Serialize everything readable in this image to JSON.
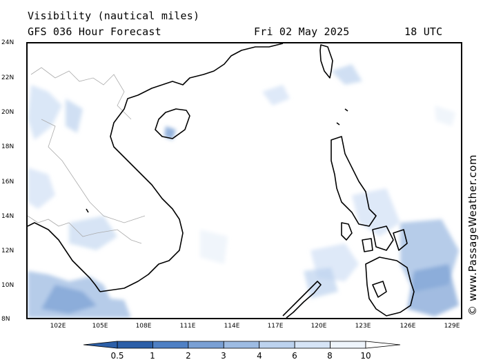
{
  "header": {
    "title": "Visibility (nautical miles)",
    "model": "GFS 036 Hour Forecast",
    "date": "Fri 02 May 2025",
    "time": "18 UTC"
  },
  "map": {
    "lat_labels": [
      "24N",
      "22N",
      "20N",
      "18N",
      "16N",
      "14N",
      "12N",
      "10N",
      "8N"
    ],
    "lon_labels": [
      "102E",
      "105E",
      "108E",
      "111E",
      "114E",
      "117E",
      "120E",
      "123E",
      "126E",
      "129E"
    ],
    "land_color": "#000000",
    "border_color": "#aaaaaa"
  },
  "watermark": "© www.PassageWeather.com",
  "colorbar": {
    "labels": [
      "0.5",
      "1",
      "2",
      "3",
      "4",
      "6",
      "8",
      "10"
    ],
    "colors": [
      "#2c5fa8",
      "#4f80c4",
      "#7aa0d4",
      "#9dbbe2",
      "#bcd2ee",
      "#d6e4f6",
      "#eef4fb"
    ]
  }
}
